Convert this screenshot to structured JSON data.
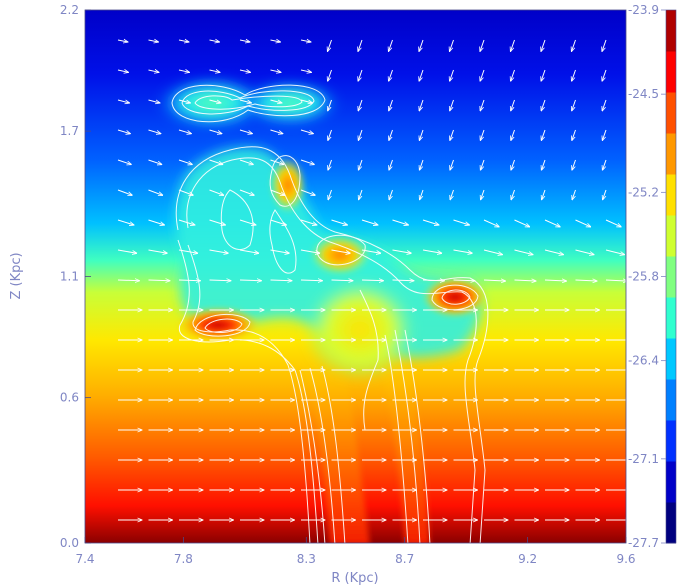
{
  "chart_data": {
    "type": "heatmap",
    "title": "",
    "xlabel": "R (Kpc)",
    "ylabel": "Z (Kpc)",
    "xlim": [
      7.4,
      9.6
    ],
    "ylim": [
      0.0,
      2.2
    ],
    "x_ticks": [
      "7.4",
      "7.8",
      "8.3",
      "8.7",
      "9.2",
      "9.6"
    ],
    "y_ticks": [
      "0.0",
      "0.6",
      "1.1",
      "1.7",
      "2.2"
    ],
    "colorbar": {
      "range": [
        -27.7,
        -23.9
      ],
      "ticks": [
        "-23.9",
        "-24.5",
        "-25.2",
        "-25.8",
        "-26.4",
        "-27.1",
        "-27.7"
      ],
      "colors": [
        "#00007f",
        "#0000c8",
        "#0030ff",
        "#0080ff",
        "#00c8ff",
        "#30ffcf",
        "#80ff80",
        "#cfff30",
        "#ffe000",
        "#ff9800",
        "#ff5000",
        "#ff0000",
        "#b00000"
      ]
    },
    "background_stratification": [
      {
        "z": 2.2,
        "value": -23.9
      },
      {
        "z": 1.25,
        "value": -25.2
      },
      {
        "z": 1.05,
        "value": -25.8
      },
      {
        "z": 0.7,
        "value": -26.4
      },
      {
        "z": 0.0,
        "value": -27.7
      }
    ],
    "blobs": [
      {
        "r": 7.85,
        "z": 1.86,
        "value": -25.3
      },
      {
        "r": 8.2,
        "z": 1.87,
        "value": -25.3
      },
      {
        "r": 7.85,
        "z": 0.96,
        "value": -27.5
      },
      {
        "r": 8.87,
        "z": 1.03,
        "value": -27.5
      },
      {
        "r": 8.15,
        "z": 1.5,
        "value": -26.8
      },
      {
        "r": 8.45,
        "z": 1.2,
        "value": -26.2
      }
    ],
    "overlays": [
      "velocity vector field (arrows)",
      "white density contours"
    ],
    "grid": false
  }
}
